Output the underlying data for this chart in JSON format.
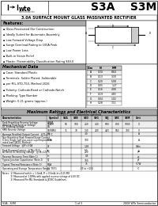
{
  "title_parts": [
    "S3A    S3M"
  ],
  "subtitle": "3.0A SURFACE MOUNT GLASS PASSIVATED RECTIFIER",
  "logo_text": "wte",
  "features_title": "Features:",
  "features": [
    "Glass Passivated Die Construction",
    "Ideally Suited for Automatic Assembly",
    "Low Forward Voltage Drop",
    "Surge Overload Rating to 100A Peak",
    "Low Power Loss",
    "Built-in Strain Relief",
    "Plastic: Flammability Classification Rating 94V-0"
  ],
  "mech_title": "Mechanical Data",
  "mech_items": [
    "Case: Standard Plastic",
    "Terminals: Solder Plated, Solderable",
    "per MIL-STD-750, Method 2026",
    "Polarity: Cathode-Band or Cathode-Notch",
    "Marking: Type Number",
    "Weight: 0.21 grams (approx.)"
  ],
  "dim_headers": [
    "Dim",
    "IN",
    "MM"
  ],
  "dim_rows": [
    [
      "A",
      "0.34",
      "8.64"
    ],
    [
      "B",
      "0.13",
      "3.30"
    ],
    [
      "C",
      "0.20",
      "5.08"
    ],
    [
      "D",
      "0.05",
      "1.27"
    ],
    [
      "E",
      "0.16",
      "4.06"
    ],
    [
      "F",
      "0.19",
      "4.83"
    ],
    [
      "G",
      "0.04",
      "1.02"
    ],
    [
      "H",
      "0.28",
      "7.11"
    ]
  ],
  "table_title": "Maximum Ratings and Electrical Characteristics",
  "table_note_header": "@T=25°C unless otherwise specified",
  "col_headers": [
    "Characteristics",
    "Symbol",
    "S3A",
    "S3B",
    "S3D",
    "S3G",
    "S3J",
    "S3K",
    "S3M",
    "Unit"
  ],
  "rows": [
    [
      "Peak Repetitive Reverse Voltage\nWorking Peak Reverse Voltage\nDC Blocking Voltage",
      "VRRM\nVRWM\nVR",
      "50",
      "100",
      "200",
      "400",
      "600",
      "800",
      "1000",
      "V"
    ],
    [
      "RMS Reverse Voltage",
      "VR(RMS)",
      "35",
      "70",
      "140",
      "280",
      "420",
      "560",
      "700",
      "V"
    ],
    [
      "Average Rectified Output Current   @TL=75°C",
      "IO",
      "",
      "",
      "3.0",
      "",
      "",
      "",
      "",
      "A"
    ],
    [
      "Non-Repetitive Peak Forward Surge Current\n8.3ms Single half sine-wave superimposed on\nrated load (JEDEC Method)",
      "IFSM",
      "",
      "",
      "100",
      "",
      "",
      "",
      "",
      "A"
    ],
    [
      "Forward Voltage   @IF=3.0A",
      "VF",
      "",
      "",
      "1.05",
      "",
      "",
      "",
      "",
      "Volts"
    ],
    [
      "Peak Reverse Current   @TA=25°C\nAt Rated DC Blocking Voltage   @TA=125°C",
      "IR",
      "",
      "",
      "5.0\n200",
      "",
      "",
      "",
      "",
      "μA"
    ],
    [
      "Reverse Recovery Time (Note 1)",
      "trr",
      "",
      "",
      "0.5",
      "",
      "",
      "",
      "",
      "μs"
    ],
    [
      "Typical Junction Capacitance (Note 2)",
      "CJ",
      "",
      "",
      "100",
      "",
      "",
      "",
      "",
      "pF"
    ],
    [
      "Typical Thermal Resistance (Note 3)",
      "RθJA",
      "",
      "",
      "15",
      "",
      "",
      "",
      "",
      "°C/W"
    ],
    [
      "Operating and Storage Temperature Range",
      "TJ, TSTG",
      "",
      "",
      "-55 to +150",
      "",
      "",
      "",
      "",
      "°C"
    ]
  ],
  "notes": [
    "Notes:  1) Measured with Ir = 1.0mA, IF = 0.5mA, Irr=0.25 IRR",
    "            2) Measured at 1.0MHz with applied reverse voltage of 4.0V DC.",
    "            3) Measured Per MIL Standards & JEDEC Guidelines."
  ],
  "footer_left": "S3A - S3M",
  "footer_mid": "1 of 3",
  "footer_right": "2008 WTe Semiconductor",
  "bg_color": "#ffffff",
  "header_bg": "#cccccc",
  "section_title_bg": "#aaaaaa",
  "alt_row": "#eeeeee"
}
